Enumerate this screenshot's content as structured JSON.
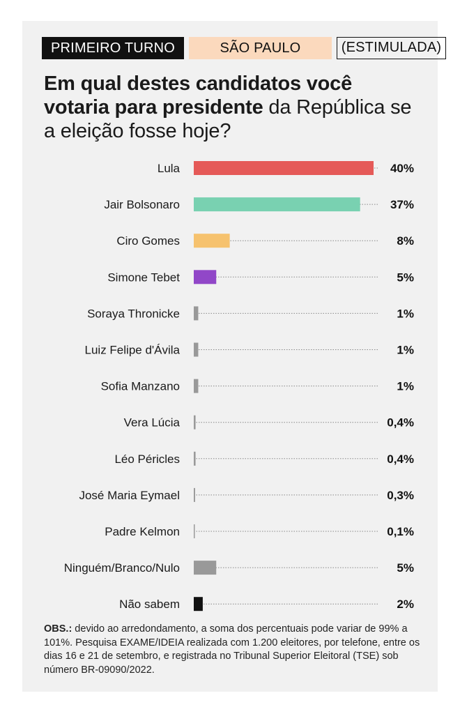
{
  "tags": {
    "round": "PRIMEIRO TURNO",
    "state": "SÃO PAULO",
    "type": "(ESTIMULADA)"
  },
  "headline": {
    "bold_part": "Em qual destes candidatos você votaria para presidente",
    "regular_part": " da República se a eleição fosse hoje?"
  },
  "chart_data": {
    "type": "bar",
    "orientation": "horizontal",
    "xlim": [
      0,
      40
    ],
    "categories": [
      "Lula",
      "Jair Bolsonaro",
      "Ciro Gomes",
      "Simone Tebet",
      "Soraya Thronicke",
      "Luiz Felipe d'Ávila",
      "Sofia Manzano",
      "Vera Lúcia",
      "Léo Péricles",
      "José Maria Eymael",
      "Padre Kelmon",
      "Ninguém/Branco/Nulo",
      "Não sabem"
    ],
    "values": [
      40,
      37,
      8,
      5,
      1,
      1,
      1,
      0.4,
      0.4,
      0.3,
      0.1,
      5,
      2
    ],
    "value_labels": [
      "40%",
      "37%",
      "8%",
      "5%",
      "1%",
      "1%",
      "1%",
      "0,4%",
      "0,4%",
      "0,3%",
      "0,1%",
      "5%",
      "2%"
    ],
    "colors": [
      "#e55a58",
      "#79d1b1",
      "#f6c26e",
      "#9147c8",
      "#999999",
      "#999999",
      "#999999",
      "#999999",
      "#999999",
      "#999999",
      "#999999",
      "#999999",
      "#111111"
    ],
    "guide_line_color": "#888888"
  },
  "note": {
    "bold_prefix": "OBS.:",
    "text": " devido ao arredondamento, a soma dos percentuais pode variar de 99% a 101%. Pesquisa EXAME/IDEIA realizada com 1.200 eleitores, por telefone, entre os dias 16 e 21 de setembro, e registrada no Tribunal Superior Eleitoral (TSE) sob número BR-09090/2022."
  }
}
